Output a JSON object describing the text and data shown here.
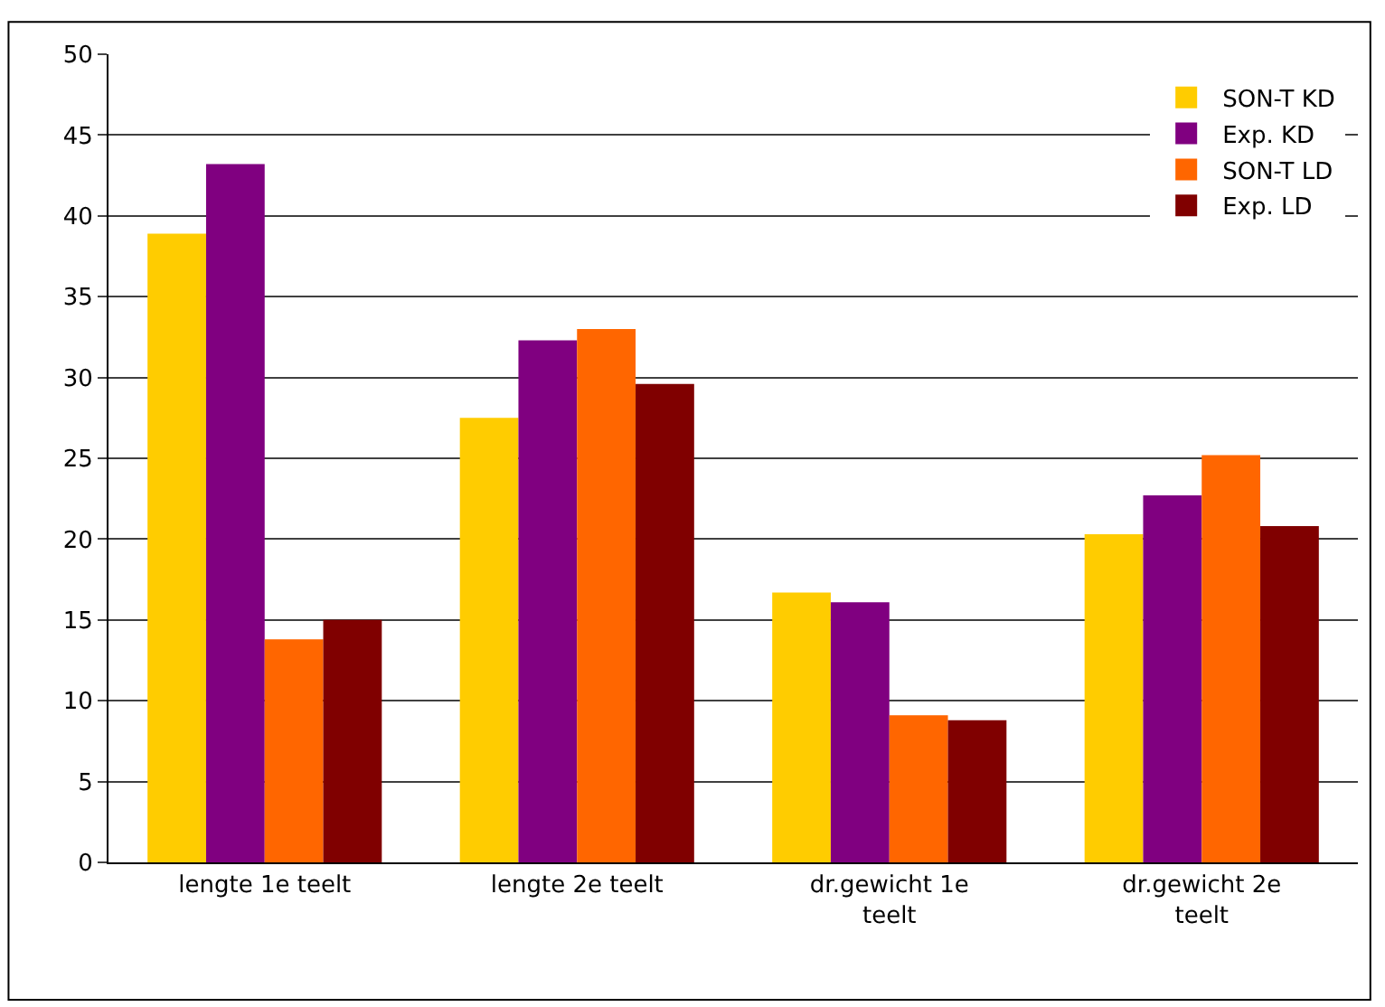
{
  "chart_data": {
    "type": "bar",
    "categories": [
      "lengte 1e teelt",
      "lengte 2e teelt",
      "dr.gewicht 1e teelt",
      "dr.gewicht 2e teelt"
    ],
    "series": [
      {
        "name": "SON-T KD",
        "color": "#ffcc00",
        "values": [
          38.9,
          27.5,
          16.7,
          20.3
        ]
      },
      {
        "name": "Exp. KD",
        "color": "#800080",
        "values": [
          43.2,
          32.3,
          16.1,
          22.7
        ]
      },
      {
        "name": "SON-T LD",
        "color": "#ff6600",
        "values": [
          13.8,
          33.0,
          9.1,
          25.2
        ]
      },
      {
        "name": "Exp. LD",
        "color": "#800000",
        "values": [
          15.0,
          29.6,
          8.8,
          20.8
        ]
      }
    ],
    "ylim": [
      0,
      50
    ],
    "yticks": [
      0,
      5,
      10,
      15,
      20,
      25,
      30,
      35,
      40,
      45,
      50
    ],
    "grid": "y",
    "legend": "top right"
  }
}
